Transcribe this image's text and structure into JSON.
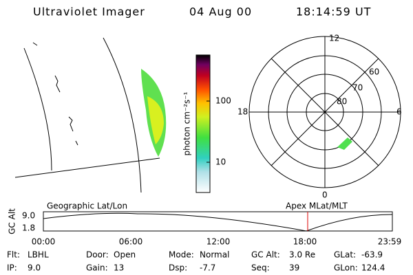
{
  "header": {
    "title": "Ultraviolet Imager",
    "date": "04 Aug 00",
    "time": "18:14:59 UT"
  },
  "colorbar": {
    "label": "photon cm⁻²s⁻¹",
    "ticks": [
      "100",
      "10"
    ]
  },
  "polar": {
    "hours": [
      "12",
      "18",
      "6",
      "0"
    ],
    "latitudes": [
      "60",
      "70",
      "80"
    ]
  },
  "timeline": {
    "left_label": "Geographic Lat/Lon",
    "right_label": "Apex MLat/MLT",
    "y_label": "GC Alt",
    "y_ticks": [
      "9.0",
      "1.8"
    ],
    "x_ticks": [
      "00:00",
      "06:00",
      "12:00",
      "18:00",
      "23:59"
    ]
  },
  "footer": {
    "rows": [
      [
        [
          "Flt:",
          "LBHL"
        ],
        [
          "Door:",
          "Open"
        ],
        [
          "Mode:",
          "Normal"
        ],
        [
          "GC Alt:",
          "3.0 Re"
        ],
        [
          "GLat:",
          "-63.9"
        ]
      ],
      [
        [
          "IP:",
          "9.0"
        ],
        [
          "Gain:",
          "13"
        ],
        [
          "Dsp:",
          "-7.7"
        ],
        [
          "Seq:",
          "39"
        ],
        [
          "GLon:",
          "124.4"
        ]
      ]
    ]
  }
}
